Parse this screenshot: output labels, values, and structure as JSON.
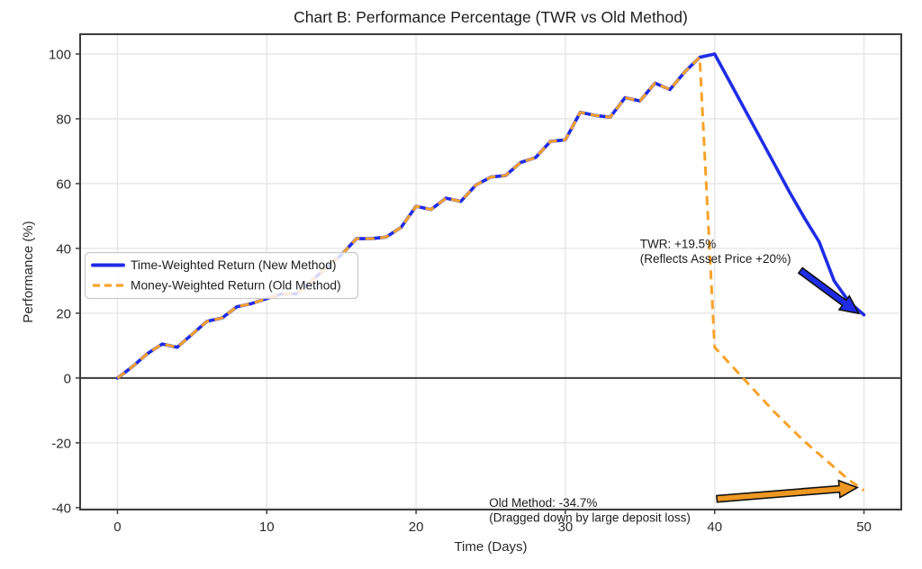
{
  "page": {
    "background": "#ffffff"
  },
  "chart_data": {
    "type": "line",
    "title": "Chart B: Performance Percentage (TWR vs Old Method)",
    "xlabel": "Time (Days)",
    "ylabel": "Performance (%)",
    "xlim": [
      -2.5,
      52.5
    ],
    "ylim": [
      -40.6,
      106.1
    ],
    "xticks": [
      0,
      10,
      20,
      30,
      40,
      50
    ],
    "yticks": [
      -40,
      -20,
      0,
      20,
      40,
      60,
      80,
      100
    ],
    "grid": true,
    "zero_line": 0,
    "legend_position": "center-left",
    "x": [
      0,
      1,
      2,
      3,
      4,
      5,
      6,
      7,
      8,
      9,
      10,
      11,
      12,
      13,
      14,
      15,
      16,
      17,
      18,
      19,
      20,
      21,
      22,
      23,
      24,
      25,
      26,
      27,
      28,
      29,
      30,
      31,
      32,
      33,
      34,
      35,
      36,
      37,
      38,
      39,
      40,
      41,
      42,
      43,
      44,
      45,
      46,
      47,
      48,
      49,
      50
    ],
    "series": [
      {
        "name": "Time-Weighted Return (New Method)",
        "color": "#1f2ce6",
        "width": 3.6,
        "dash": null,
        "values": [
          0,
          3.5,
          7.5,
          10.5,
          9.5,
          13.5,
          17.5,
          18.5,
          22,
          23,
          24.5,
          26,
          26,
          30,
          34,
          38,
          43,
          43,
          43.5,
          46.5,
          53,
          52,
          55.5,
          54.5,
          59.5,
          62,
          62.5,
          66.5,
          68,
          73,
          73.5,
          82,
          81,
          80.5,
          86.5,
          85.5,
          91,
          89,
          94.5,
          99,
          100,
          91.5,
          83,
          74.5,
          66,
          57.5,
          49.5,
          42,
          30,
          23.5,
          19.5
        ]
      },
      {
        "name": "Money-Weighted Return (Old Method)",
        "color": "#f8a22a",
        "width": 3,
        "dash": "10 6.5",
        "values": [
          0,
          3.5,
          7.5,
          10.5,
          9.5,
          13.5,
          17.5,
          18.5,
          22,
          23,
          24.5,
          26,
          26,
          30,
          34,
          38,
          43,
          43,
          43.5,
          46.5,
          53,
          52,
          55.5,
          54.5,
          59.5,
          62,
          62.5,
          66.5,
          68,
          73,
          73.5,
          82,
          81,
          80.5,
          86.5,
          85.5,
          91,
          89,
          94.5,
          99,
          9.5,
          4.5,
          -0.5,
          -5.5,
          -10.5,
          -15,
          -19.5,
          -23.5,
          -27.5,
          -31.5,
          -34.7
        ]
      }
    ],
    "annotations": [
      {
        "id": "twr-annotation",
        "lines": [
          "TWR: +19.5%",
          "(Reflects Asset Price +20%)"
        ],
        "x": 35,
        "y": 43.5,
        "color": "#1c1c1c"
      },
      {
        "id": "old-method-annotation",
        "lines": [
          "Old Method: -34.7%",
          "(Dragged down by large deposit loss)"
        ],
        "x": 24.9,
        "y": -36.4,
        "color": "#1c1c1c"
      }
    ],
    "arrows": [
      {
        "id": "twr-arrow",
        "from": [
          45.75,
          33.2
        ],
        "to": [
          49.65,
          19.9
        ],
        "fill": "#1f2ce6",
        "outline": "#111111"
      },
      {
        "id": "old-method-arrow",
        "from": [
          40.15,
          -37.3
        ],
        "to": [
          49.55,
          -33.8
        ],
        "fill": "#ee9822",
        "outline": "#111111"
      }
    ],
    "colors": {
      "grid": "#e4e4e4",
      "spine": "#3c3c3c",
      "zero_line": "#3c3c3c",
      "background": "#ffffff"
    }
  }
}
